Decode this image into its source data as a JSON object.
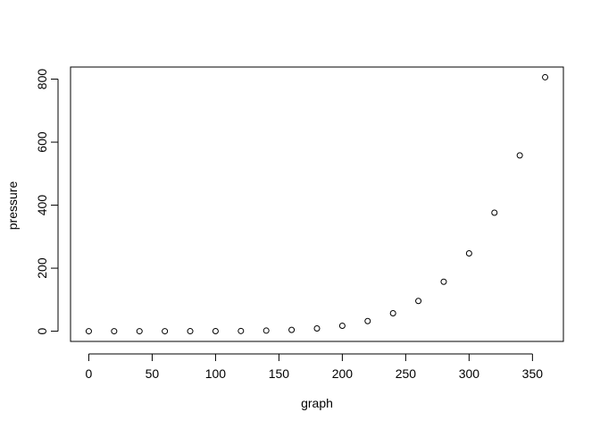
{
  "chart_data": {
    "type": "scatter",
    "title": "",
    "xlabel": "graph",
    "ylabel": "pressure",
    "xlim": [
      -14.4,
      374.4
    ],
    "ylim": [
      -32.4,
      838.4
    ],
    "xticks": [
      0,
      50,
      100,
      150,
      200,
      250,
      300,
      350
    ],
    "yticks": [
      0,
      200,
      400,
      600,
      800
    ],
    "grid": false,
    "legend": "none",
    "marker": "open-circle",
    "series": [
      {
        "x": [
          0,
          20,
          40,
          60,
          80,
          100,
          120,
          140,
          160,
          180,
          200,
          220,
          240,
          260,
          280,
          300,
          320,
          340,
          360
        ],
        "y": [
          0.0002,
          0.0012,
          0.006,
          0.03,
          0.09,
          0.27,
          0.75,
          1.85,
          4.2,
          8.8,
          17.3,
          32.1,
          57,
          96,
          157,
          247,
          376,
          558,
          806
        ]
      }
    ]
  }
}
